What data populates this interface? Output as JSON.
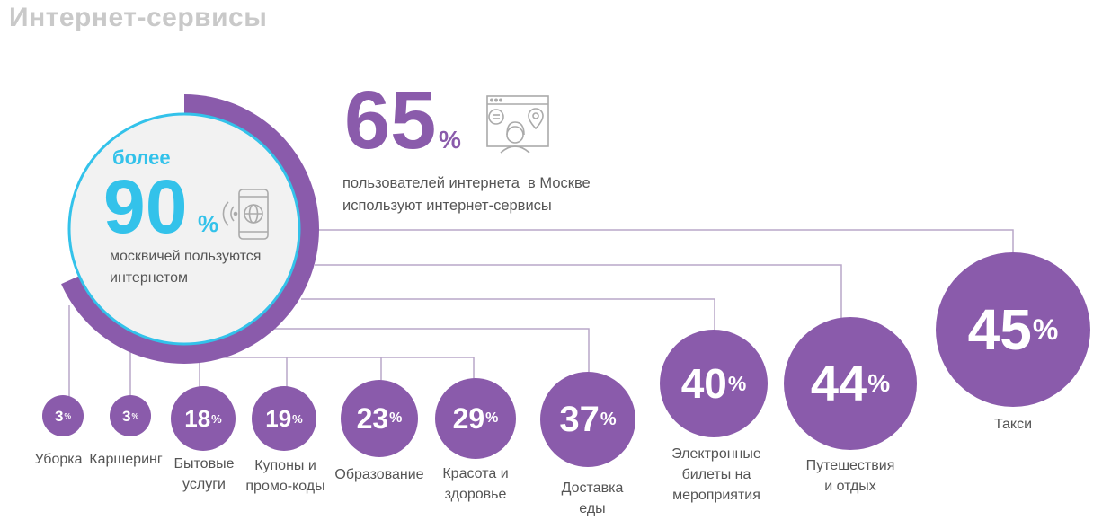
{
  "title": "Интернет-сервисы",
  "main_stat": {
    "prefix": "более",
    "value": "90",
    "unit": "%",
    "text": "москвичей пользуются интернетом"
  },
  "secondary_stat": {
    "value": "65",
    "unit": "%",
    "text_line1": "пользователей интернета  в Москве",
    "text_line2": "используют интернет-сервисы"
  },
  "services": [
    {
      "value": "3",
      "unit": "%",
      "label": "Уборка"
    },
    {
      "value": "3",
      "unit": "%",
      "label": "Каршеринг"
    },
    {
      "value": "18",
      "unit": "%",
      "label_line1": "Бытовые",
      "label_line2": "услуги"
    },
    {
      "value": "19",
      "unit": "%",
      "label_line1": "Купоны и",
      "label_line2": "промо-коды"
    },
    {
      "value": "23",
      "unit": "%",
      "label": "Образование"
    },
    {
      "value": "29",
      "unit": "%",
      "label_line1": "Красота и",
      "label_line2": "здоровье"
    },
    {
      "value": "37",
      "unit": "%",
      "label_line1": "Доставка",
      "label_line2": "еды"
    },
    {
      "value": "40",
      "unit": "%",
      "label_line1": "Электронные",
      "label_line2": "билеты на",
      "label_line3": "мероприятия"
    },
    {
      "value": "44",
      "unit": "%",
      "label_line1": "Путешествия",
      "label_line2": "и отдых"
    },
    {
      "value": "45",
      "unit": "%",
      "label": "Такси"
    }
  ],
  "colors": {
    "purple": "#8a5bab",
    "blue": "#33c2ea",
    "line": "#b9a7c9",
    "title": "#c9c9c9"
  },
  "icons": [
    "smartphone-wifi-icon",
    "browser-user-icon"
  ]
}
